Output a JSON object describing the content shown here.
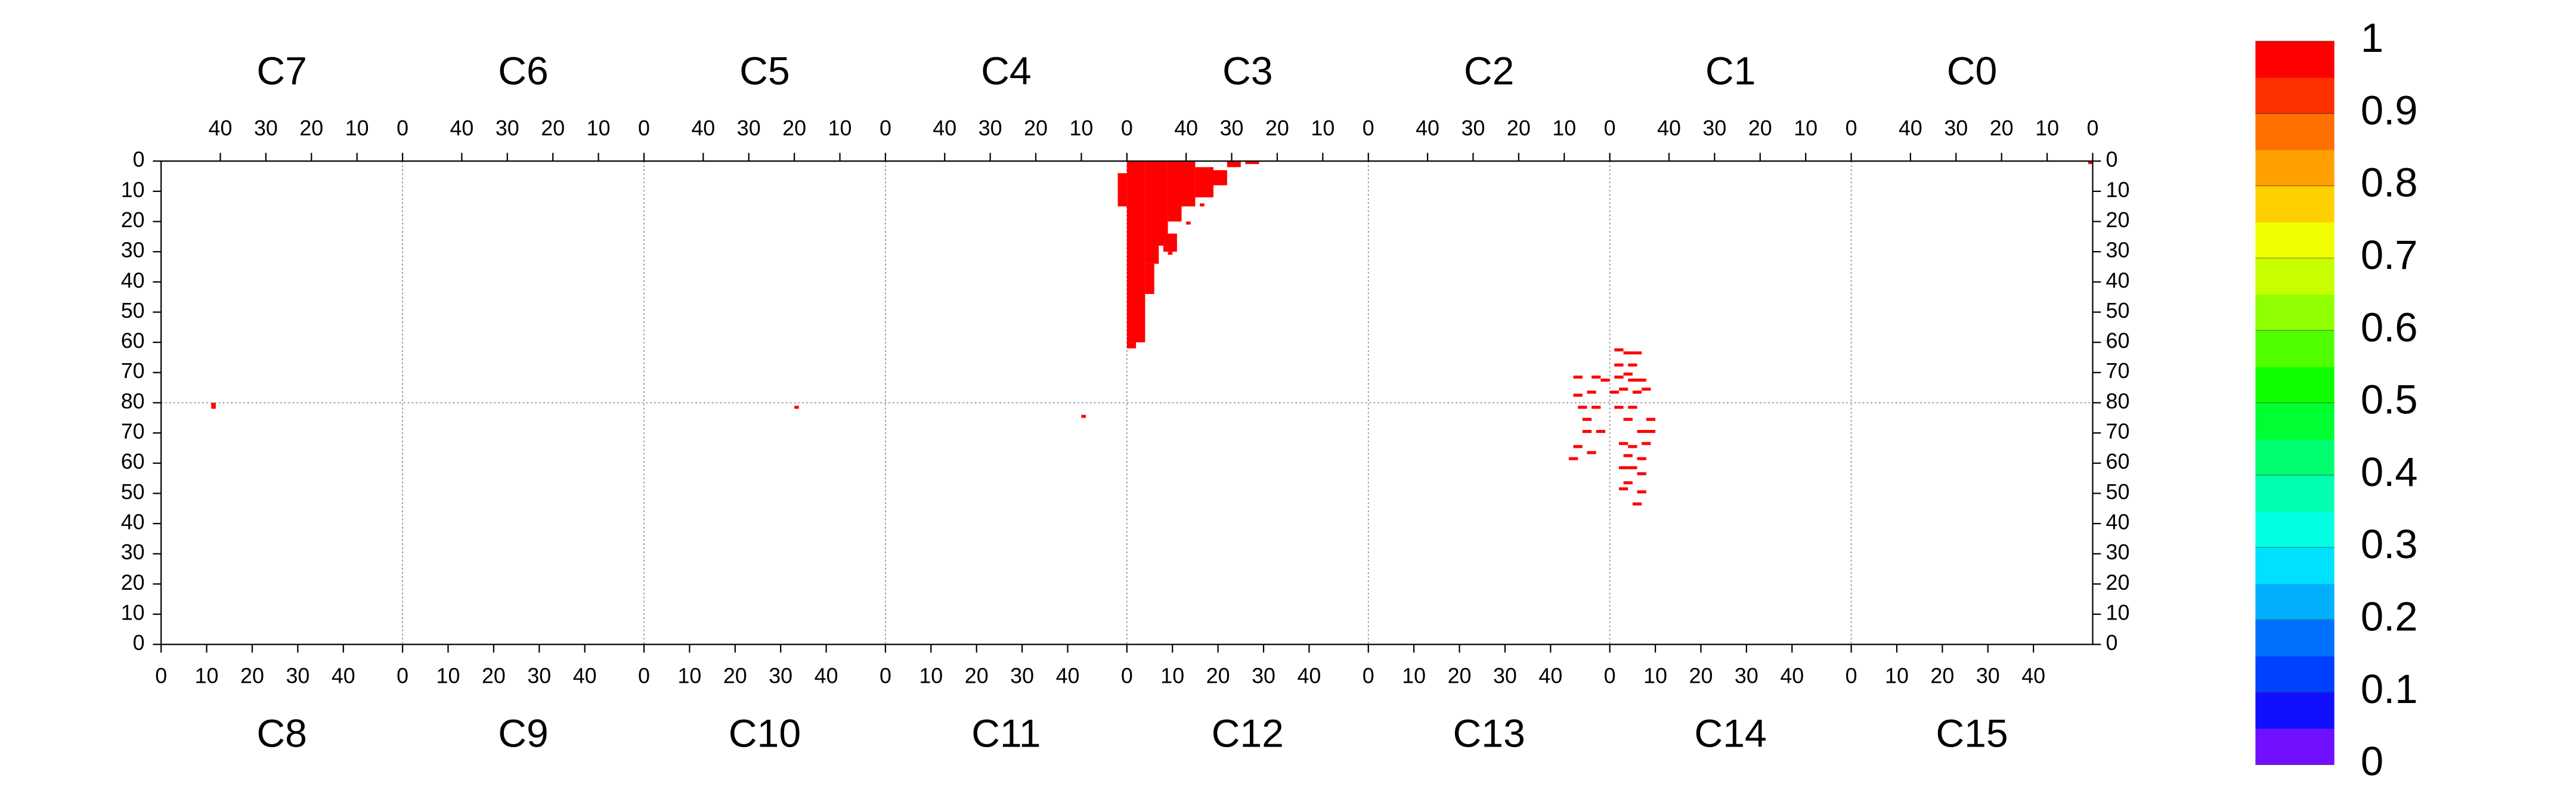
{
  "chart_data": {
    "type": "heatmap",
    "panels": [
      "C0",
      "C1",
      "C2",
      "C3",
      "C4",
      "C5",
      "C6",
      "C7",
      "C8",
      "C9",
      "C10",
      "C11",
      "C12",
      "C13",
      "C14",
      "C15"
    ],
    "top": {
      "xlim": [
        53,
        0
      ],
      "xticks": [
        40,
        30,
        20,
        10,
        0
      ],
      "ylim": [
        80,
        0
      ],
      "yticks": [
        0,
        10,
        20,
        30,
        40,
        50,
        60,
        70,
        80
      ]
    },
    "bottom": {
      "xlim": [
        0,
        53
      ],
      "xticks": [
        0,
        10,
        20,
        30,
        40
      ],
      "ylim": [
        0,
        80
      ],
      "yticks": [
        0,
        10,
        20,
        30,
        40,
        50,
        60,
        70
      ]
    },
    "grid": true,
    "colorbar": {
      "zlim": [
        0,
        1
      ],
      "ticks": [
        0,
        0.1,
        0.2,
        0.3,
        0.4,
        0.5,
        0.6,
        0.7,
        0.8,
        0.9,
        1
      ],
      "colors": [
        "#7010ff",
        "#1010ff",
        "#0040ff",
        "#0070ff",
        "#00b0ff",
        "#00e0ff",
        "#00ffe0",
        "#00ffb0",
        "#00ff70",
        "#00ff30",
        "#10ff00",
        "#50ff00",
        "#90ff00",
        "#c8ff00",
        "#f0ff00",
        "#ffd000",
        "#ffa000",
        "#ff7000",
        "#ff3000",
        "#ff0000"
      ]
    },
    "cells": [
      {
        "panel": 3,
        "x": [
          49,
          53
        ],
        "y": [
          0,
          60
        ],
        "value": 1
      },
      {
        "panel": 3,
        "x": [
          51,
          53
        ],
        "y": [
          60,
          62
        ],
        "value": 1
      },
      {
        "panel": 3,
        "x": [
          44,
          49
        ],
        "y": [
          0,
          28
        ],
        "value": 1
      },
      {
        "panel": 3,
        "x": [
          41,
          44
        ],
        "y": [
          0,
          20
        ],
        "value": 1
      },
      {
        "panel": 3,
        "x": [
          38,
          41
        ],
        "y": [
          0,
          15
        ],
        "value": 1
      },
      {
        "panel": 3,
        "x": [
          34,
          38
        ],
        "y": [
          2,
          12
        ],
        "value": 1
      },
      {
        "panel": 3,
        "x": [
          31,
          34
        ],
        "y": [
          3,
          8
        ],
        "value": 1
      },
      {
        "panel": 3,
        "x": [
          28,
          31
        ],
        "y": [
          0,
          2
        ],
        "value": 1
      },
      {
        "panel": 3,
        "x": [
          24,
          27
        ],
        "y": [
          0,
          1
        ],
        "value": 1
      },
      {
        "panel": 3,
        "x": [
          46,
          49
        ],
        "y": [
          28,
          34
        ],
        "value": 1
      },
      {
        "panel": 3,
        "x": [
          47,
          49
        ],
        "y": [
          34,
          44
        ],
        "value": 1
      },
      {
        "panel": 3,
        "x": [
          42,
          45
        ],
        "y": [
          24,
          30
        ],
        "value": 1
      },
      {
        "panel": 3,
        "x": [
          36,
          37
        ],
        "y": [
          14,
          15
        ],
        "value": 1
      },
      {
        "panel": 3,
        "x": [
          39,
          40
        ],
        "y": [
          20,
          21
        ],
        "value": 1
      },
      {
        "panel": 3,
        "x": [
          43,
          44
        ],
        "y": [
          30,
          31
        ],
        "value": 1
      },
      {
        "panel": 4,
        "x": [
          0,
          2
        ],
        "y": [
          4,
          15
        ],
        "value": 1
      },
      {
        "panel": 0,
        "x": [
          0,
          1
        ],
        "y": [
          0,
          1
        ],
        "value": 1
      },
      {
        "panel": 8,
        "x": [
          11,
          12
        ],
        "y": [
          78,
          80
        ],
        "value": 1
      },
      {
        "panel": 10,
        "x": [
          33,
          34
        ],
        "y": [
          78,
          79
        ],
        "value": 1
      },
      {
        "panel": 11,
        "x": [
          43,
          44
        ],
        "y": [
          75,
          76
        ],
        "value": 1
      },
      {
        "panel": 1,
        "x": [
          50,
          52
        ],
        "y": [
          62,
          63
        ],
        "value": 1
      },
      {
        "panel": 1,
        "x": [
          48,
          50
        ],
        "y": [
          63,
          64
        ],
        "value": 1
      },
      {
        "panel": 1,
        "x": [
          46,
          48
        ],
        "y": [
          63,
          64
        ],
        "value": 1
      },
      {
        "panel": 1,
        "x": [
          50,
          52
        ],
        "y": [
          67,
          68
        ],
        "value": 1
      },
      {
        "panel": 1,
        "x": [
          47,
          49
        ],
        "y": [
          67,
          68
        ],
        "value": 1
      },
      {
        "panel": 1,
        "x": [
          50,
          52
        ],
        "y": [
          71,
          72
        ],
        "value": 1
      },
      {
        "panel": 1,
        "x": [
          47,
          49
        ],
        "y": [
          72,
          73
        ],
        "value": 1
      },
      {
        "panel": 1,
        "x": [
          45,
          47
        ],
        "y": [
          72,
          73
        ],
        "value": 1
      },
      {
        "panel": 1,
        "x": [
          49,
          51
        ],
        "y": [
          75,
          76
        ],
        "value": 1
      },
      {
        "panel": 1,
        "x": [
          46,
          48
        ],
        "y": [
          76,
          77
        ],
        "value": 1
      },
      {
        "panel": 1,
        "x": [
          44,
          46
        ],
        "y": [
          75,
          76
        ],
        "value": 1
      },
      {
        "panel": 1,
        "x": [
          51,
          53
        ],
        "y": [
          76,
          77
        ],
        "value": 1
      },
      {
        "panel": 1,
        "x": [
          48,
          50
        ],
        "y": [
          70,
          71
        ],
        "value": 1
      },
      {
        "panel": 2,
        "x": [
          6,
          8
        ],
        "y": [
          71,
          72
        ],
        "value": 1
      },
      {
        "panel": 2,
        "x": [
          2,
          4
        ],
        "y": [
          71,
          72
        ],
        "value": 1
      },
      {
        "panel": 2,
        "x": [
          0,
          2
        ],
        "y": [
          72,
          73
        ],
        "value": 1
      },
      {
        "panel": 2,
        "x": [
          3,
          5
        ],
        "y": [
          76,
          77
        ],
        "value": 1
      },
      {
        "panel": 2,
        "x": [
          6,
          8
        ],
        "y": [
          77,
          78
        ],
        "value": 1
      },
      {
        "panel": 14,
        "x": [
          1,
          3
        ],
        "y": [
          78,
          79
        ],
        "value": 1
      },
      {
        "panel": 14,
        "x": [
          4,
          6
        ],
        "y": [
          78,
          79
        ],
        "value": 1
      },
      {
        "panel": 14,
        "x": [
          3,
          5
        ],
        "y": [
          74,
          75
        ],
        "value": 1
      },
      {
        "panel": 14,
        "x": [
          8,
          10
        ],
        "y": [
          74,
          75
        ],
        "value": 1
      },
      {
        "panel": 14,
        "x": [
          6,
          8
        ],
        "y": [
          70,
          71
        ],
        "value": 1
      },
      {
        "panel": 14,
        "x": [
          8,
          10
        ],
        "y": [
          70,
          71
        ],
        "value": 1
      },
      {
        "panel": 14,
        "x": [
          2,
          4
        ],
        "y": [
          66,
          67
        ],
        "value": 1
      },
      {
        "panel": 14,
        "x": [
          4,
          6
        ],
        "y": [
          65,
          66
        ],
        "value": 1
      },
      {
        "panel": 14,
        "x": [
          7,
          9
        ],
        "y": [
          66,
          67
        ],
        "value": 1
      },
      {
        "panel": 14,
        "x": [
          3,
          5
        ],
        "y": [
          62,
          63
        ],
        "value": 1
      },
      {
        "panel": 14,
        "x": [
          6,
          8
        ],
        "y": [
          61,
          62
        ],
        "value": 1
      },
      {
        "panel": 14,
        "x": [
          2,
          4
        ],
        "y": [
          58,
          59
        ],
        "value": 1
      },
      {
        "panel": 14,
        "x": [
          4,
          6
        ],
        "y": [
          58,
          59
        ],
        "value": 1
      },
      {
        "panel": 14,
        "x": [
          6,
          8
        ],
        "y": [
          56,
          57
        ],
        "value": 1
      },
      {
        "panel": 14,
        "x": [
          3,
          5
        ],
        "y": [
          53,
          54
        ],
        "value": 1
      },
      {
        "panel": 14,
        "x": [
          2,
          4
        ],
        "y": [
          51,
          52
        ],
        "value": 1
      },
      {
        "panel": 14,
        "x": [
          6,
          8
        ],
        "y": [
          50,
          51
        ],
        "value": 1
      },
      {
        "panel": 14,
        "x": [
          5,
          7
        ],
        "y": [
          46,
          47
        ],
        "value": 1
      },
      {
        "panel": 13,
        "x": [
          46,
          48
        ],
        "y": [
          78,
          79
        ],
        "value": 1
      },
      {
        "panel": 13,
        "x": [
          49,
          51
        ],
        "y": [
          78,
          79
        ],
        "value": 1
      },
      {
        "panel": 13,
        "x": [
          47,
          49
        ],
        "y": [
          74,
          75
        ],
        "value": 1
      },
      {
        "panel": 13,
        "x": [
          47,
          49
        ],
        "y": [
          70,
          71
        ],
        "value": 1
      },
      {
        "panel": 13,
        "x": [
          50,
          52
        ],
        "y": [
          70,
          71
        ],
        "value": 1
      },
      {
        "panel": 13,
        "x": [
          45,
          47
        ],
        "y": [
          65,
          66
        ],
        "value": 1
      },
      {
        "panel": 13,
        "x": [
          48,
          50
        ],
        "y": [
          63,
          64
        ],
        "value": 1
      },
      {
        "panel": 13,
        "x": [
          44,
          46
        ],
        "y": [
          61,
          62
        ],
        "value": 1
      }
    ]
  }
}
